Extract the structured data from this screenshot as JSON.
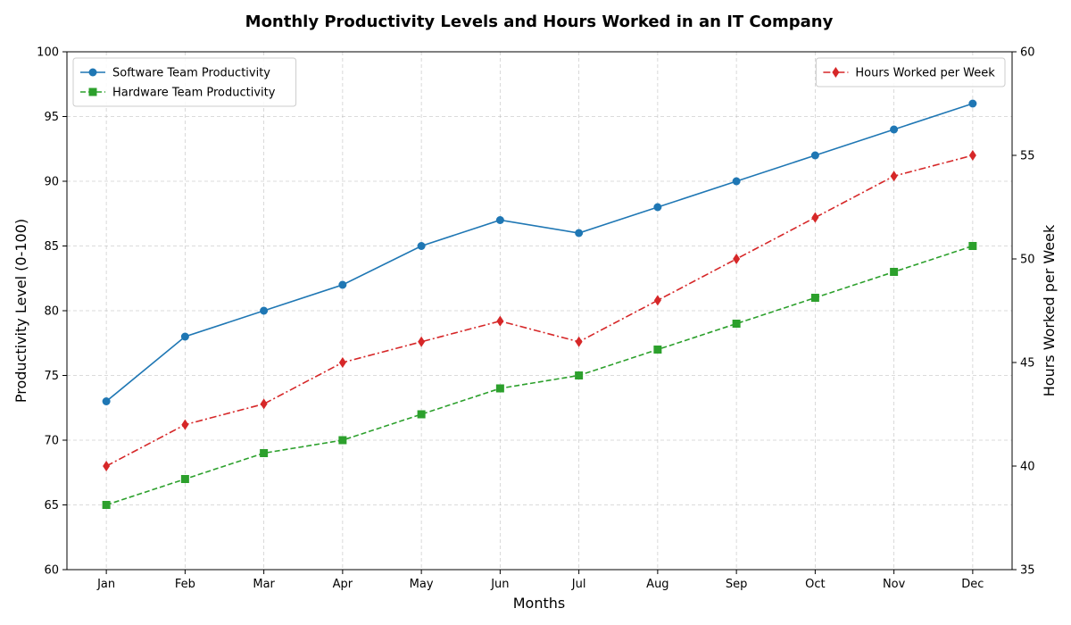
{
  "chart_data": {
    "type": "line",
    "title": "Monthly Productivity Levels and Hours Worked in an IT Company",
    "xlabel": "Months",
    "ylabel": "Productivity Level (0-100)",
    "y2label": "Hours Worked per Week",
    "categories": [
      "Jan",
      "Feb",
      "Mar",
      "Apr",
      "May",
      "Jun",
      "Jul",
      "Aug",
      "Sep",
      "Oct",
      "Nov",
      "Dec"
    ],
    "ylim": [
      60,
      100
    ],
    "yticks": [
      60,
      65,
      70,
      75,
      80,
      85,
      90,
      95,
      100
    ],
    "y2lim": [
      35,
      60
    ],
    "y2ticks": [
      35,
      40,
      45,
      50,
      55,
      60
    ],
    "grid": true,
    "series": [
      {
        "name": "Software Team Productivity",
        "axis": "left",
        "color": "#1f77b4",
        "linestyle": "solid",
        "marker": "circle",
        "values": [
          73,
          78,
          80,
          82,
          85,
          87,
          86,
          88,
          90,
          92,
          94,
          96
        ]
      },
      {
        "name": "Hardware Team Productivity",
        "axis": "left",
        "color": "#2ca02c",
        "linestyle": "dashed",
        "marker": "square",
        "values": [
          65,
          67,
          69,
          70,
          72,
          74,
          75,
          77,
          79,
          81,
          83,
          85
        ]
      },
      {
        "name": "Hours Worked per Week",
        "axis": "right",
        "color": "#d62728",
        "linestyle": "dashdot",
        "marker": "diamond",
        "values": [
          40,
          42,
          43,
          45,
          46,
          47,
          46,
          48,
          50,
          52,
          54,
          55
        ]
      }
    ],
    "legends": [
      {
        "placement": "top-left",
        "series": [
          "Software Team Productivity",
          "Hardware Team Productivity"
        ]
      },
      {
        "placement": "top-right",
        "series": [
          "Hours Worked per Week"
        ]
      }
    ]
  }
}
